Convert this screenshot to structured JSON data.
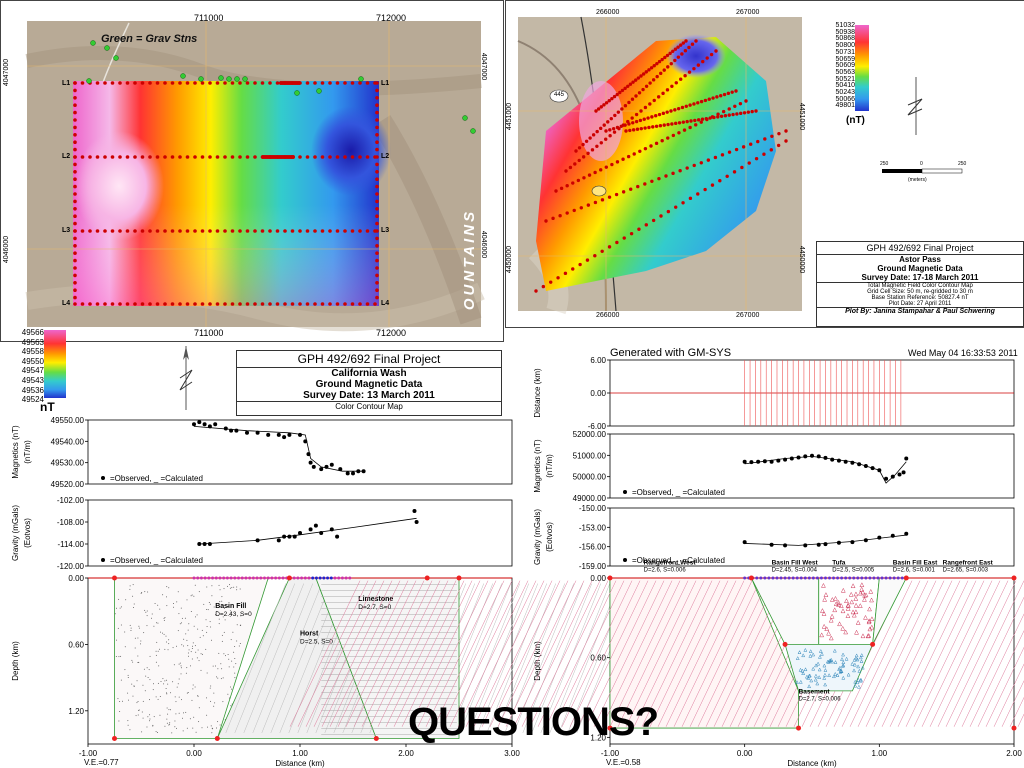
{
  "colors": {
    "plot_line": "#cc0000",
    "grid": "#cccccc",
    "green_station": "#33cc33",
    "red_station": "#cc0000"
  },
  "left_map": {
    "top_ticks": [
      "711000",
      "712000"
    ],
    "bottom_ticks": [
      "711000",
      "712000"
    ],
    "left_ticks": [
      "4047000",
      "4046000"
    ],
    "right_ticks": [
      "4047000",
      "4046000"
    ],
    "annotation": "Green = Grav Stns",
    "line_labels": [
      "L1",
      "L2",
      "L3",
      "L4"
    ],
    "mountains_text": "OUNTAINS",
    "colorbar_title": "nT",
    "colorbar_values": [
      "49566",
      "49563",
      "49558",
      "49550",
      "49547",
      "49543",
      "49536",
      "49524"
    ]
  },
  "left_title_block": {
    "course": "GPH 492/692 Final Project",
    "location": "California Wash",
    "data_type": "Ground Magnetic Data",
    "survey_date": "Survey Date: 13 March 2011",
    "map_type": "Color Contour Map"
  },
  "right_map": {
    "top_ticks": [
      "266000",
      "267000"
    ],
    "bottom_ticks": [
      "266000",
      "267000"
    ],
    "left_ticks": [
      "4451000",
      "4450000"
    ],
    "right_ticks": [
      "4451000",
      "4450000"
    ],
    "colorbar_title": "(nT)",
    "colorbar_values": [
      "51032",
      "50938",
      "50868",
      "50800",
      "50731",
      "50659",
      "50609",
      "50563",
      "50521",
      "50410",
      "50243",
      "50066",
      "49801"
    ],
    "road_label": "445",
    "scale_label": "(meters)",
    "scale_ticks": [
      "250",
      "0",
      "250"
    ]
  },
  "right_title_block": {
    "course": "GPH 492/692 Final Project",
    "location": "Astor Pass",
    "data_type": "Ground Magnetic Data",
    "survey_date": "Survey Date: 17-18 March 2011",
    "line1": "Total Magnetic Field Color Contour Map",
    "line2": "Grid Cell Size: 50 m, re-gridded to 30 m",
    "line3": "Base Station Reference: 50827.4 nT",
    "line4": "Plot Date: 27 April 2011",
    "credit": "Plot By: Janina Stampahar & Paul Schwering"
  },
  "gmsys": {
    "generated": "Generated with GM-SYS",
    "timestamp": "Wed May 04 16:33:53 2011"
  },
  "questions": "QUESTIONS?",
  "chart_data": [
    {
      "type": "scatter",
      "panel": "left-magnetics",
      "ylabel": "Magnetics (nT)",
      "ylabel2": "(nT/m)",
      "yticks": [
        "49550.00",
        "49540.00",
        "49530.00",
        "49520.00"
      ],
      "ylim": [
        49520,
        49550
      ],
      "xlim": [
        -1.0,
        3.0
      ],
      "legend": "=Observed,   _  =Calculated",
      "observed": [
        [
          0.0,
          49548
        ],
        [
          0.05,
          49549
        ],
        [
          0.1,
          49548
        ],
        [
          0.15,
          49547
        ],
        [
          0.2,
          49548
        ],
        [
          0.3,
          49546
        ],
        [
          0.35,
          49545
        ],
        [
          0.4,
          49545
        ],
        [
          0.5,
          49544
        ],
        [
          0.6,
          49544
        ],
        [
          0.7,
          49543
        ],
        [
          0.8,
          49543
        ],
        [
          0.85,
          49542
        ],
        [
          0.9,
          49543
        ],
        [
          1.0,
          49543
        ],
        [
          1.05,
          49540
        ],
        [
          1.08,
          49534
        ],
        [
          1.1,
          49530
        ],
        [
          1.13,
          49528
        ],
        [
          1.2,
          49527
        ],
        [
          1.25,
          49528
        ],
        [
          1.3,
          49529
        ],
        [
          1.38,
          49527
        ],
        [
          1.45,
          49525
        ],
        [
          1.5,
          49525
        ],
        [
          1.55,
          49526
        ],
        [
          1.6,
          49526
        ]
      ],
      "calculated": [
        [
          0.0,
          49547
        ],
        [
          0.5,
          49545
        ],
        [
          0.9,
          49544
        ],
        [
          1.05,
          49543
        ],
        [
          1.1,
          49532
        ],
        [
          1.2,
          49528
        ],
        [
          1.4,
          49526
        ],
        [
          1.6,
          49526
        ]
      ]
    },
    {
      "type": "scatter",
      "panel": "left-gravity",
      "ylabel": "Gravity (mGals)",
      "ylabel2": "(Eotvos)",
      "yticks": [
        "-102.00",
        "-108.00",
        "-114.00",
        "-120.00"
      ],
      "ylim": [
        -120,
        -102
      ],
      "xlim": [
        -1.0,
        3.0
      ],
      "legend": "=Observed,   _  =Calculated",
      "observed": [
        [
          0.05,
          -114
        ],
        [
          0.1,
          -114
        ],
        [
          0.15,
          -114
        ],
        [
          0.6,
          -113
        ],
        [
          0.8,
          -113
        ],
        [
          0.85,
          -112
        ],
        [
          0.9,
          -112
        ],
        [
          0.95,
          -112
        ],
        [
          1.0,
          -111
        ],
        [
          1.1,
          -110
        ],
        [
          1.15,
          -109
        ],
        [
          1.2,
          -111
        ],
        [
          1.3,
          -110
        ],
        [
          1.35,
          -112
        ],
        [
          2.08,
          -105
        ],
        [
          2.1,
          -108
        ]
      ],
      "calculated": [
        [
          0.05,
          -114
        ],
        [
          0.6,
          -113
        ],
        [
          1.0,
          -111.5
        ],
        [
          1.5,
          -109.5
        ],
        [
          2.1,
          -107
        ]
      ]
    },
    {
      "type": "area",
      "panel": "left-depth",
      "ylabel": "Depth (km)",
      "xlabel": "Distance (km)",
      "xticks": [
        "-1.00",
        "0.00",
        "1.00",
        "2.00",
        "3.00"
      ],
      "yticks": [
        "0.00",
        "0.60",
        "1.20"
      ],
      "xlim": [
        -1.0,
        3.0
      ],
      "ylim": [
        0,
        1.5
      ],
      "ve": "V.E.=0.77",
      "bodies": [
        {
          "name": "Basin Fill",
          "params": "D=2.43, S=0"
        },
        {
          "name": "Horst",
          "params": "D=2.5, S=0"
        },
        {
          "name": "Limestone",
          "params": "D=2.7, S=0"
        }
      ]
    },
    {
      "type": "line",
      "panel": "right-distance",
      "ylabel": "Distance (km)",
      "yticks": [
        "-6.00",
        "0.00",
        "6.00"
      ],
      "ylim": [
        -6,
        6
      ],
      "xlim": [
        -1.0,
        2.0
      ]
    },
    {
      "type": "scatter",
      "panel": "right-magnetics",
      "ylabel": "Magnetics (nT)",
      "ylabel2": "(nT/m)",
      "yticks": [
        "52000.00",
        "51000.00",
        "50000.00",
        "49000.00"
      ],
      "ylim": [
        49000,
        52000
      ],
      "xlim": [
        -1.0,
        2.0
      ],
      "legend": "=Observed,   _  =Calculated",
      "observed": [
        [
          0.0,
          50700
        ],
        [
          0.05,
          50680
        ],
        [
          0.1,
          50700
        ],
        [
          0.15,
          50720
        ],
        [
          0.2,
          50700
        ],
        [
          0.25,
          50750
        ],
        [
          0.3,
          50800
        ],
        [
          0.35,
          50850
        ],
        [
          0.4,
          50900
        ],
        [
          0.45,
          50950
        ],
        [
          0.5,
          50980
        ],
        [
          0.55,
          50950
        ],
        [
          0.6,
          50880
        ],
        [
          0.65,
          50800
        ],
        [
          0.7,
          50750
        ],
        [
          0.75,
          50700
        ],
        [
          0.8,
          50650
        ],
        [
          0.85,
          50580
        ],
        [
          0.9,
          50500
        ],
        [
          0.95,
          50400
        ],
        [
          1.0,
          50300
        ],
        [
          1.05,
          49900
        ],
        [
          1.1,
          50000
        ],
        [
          1.15,
          50100
        ],
        [
          1.18,
          50200
        ],
        [
          1.2,
          50850
        ]
      ],
      "calculated": [
        [
          0.0,
          50600
        ],
        [
          0.3,
          50850
        ],
        [
          0.5,
          50950
        ],
        [
          0.8,
          50700
        ],
        [
          1.0,
          50300
        ],
        [
          1.05,
          49700
        ],
        [
          1.12,
          50100
        ],
        [
          1.2,
          50700
        ]
      ]
    },
    {
      "type": "scatter",
      "panel": "right-gravity",
      "ylabel": "Gravity (mGals)",
      "ylabel2": "(Eotvos)",
      "yticks": [
        "-150.00",
        "-153.00",
        "-156.00",
        "-159.00"
      ],
      "ylim": [
        -159,
        -150
      ],
      "xlim": [
        -1.0,
        2.0
      ],
      "legend": "=Observed,   _  =Calculated",
      "observed": [
        [
          0.0,
          -155.3
        ],
        [
          0.2,
          -155.7
        ],
        [
          0.3,
          -155.8
        ],
        [
          0.45,
          -155.8
        ],
        [
          0.55,
          -155.7
        ],
        [
          0.6,
          -155.6
        ],
        [
          0.7,
          -155.4
        ],
        [
          0.8,
          -155.3
        ],
        [
          0.9,
          -155.0
        ],
        [
          1.0,
          -154.6
        ],
        [
          1.1,
          -154.3
        ],
        [
          1.2,
          -154.0
        ]
      ],
      "calculated": [
        [
          0.0,
          -155.5
        ],
        [
          0.4,
          -155.8
        ],
        [
          0.8,
          -155.2
        ],
        [
          1.2,
          -154.2
        ]
      ]
    },
    {
      "type": "area",
      "panel": "right-depth",
      "ylabel": "Depth (km)",
      "xlabel": "Distance (km)",
      "xticks": [
        "-1.00",
        "0.00",
        "1.00",
        "2.00"
      ],
      "yticks": [
        "0.00",
        "0.60",
        "1.20"
      ],
      "xlim": [
        -1.0,
        2.0
      ],
      "ylim": [
        0,
        1.25
      ],
      "ve": "V.E.=0.58",
      "bodies": [
        {
          "name": "Rangefront West",
          "params": "D=2.6, S=0.006"
        },
        {
          "name": "Basin Fill West",
          "params": "D=2.45, S=0.004"
        },
        {
          "name": "Tufa",
          "params": "D=2.5, S=0.005"
        },
        {
          "name": "Basin Fill East",
          "params": "D=2.6, S=0.001"
        },
        {
          "name": "Rangefront East",
          "params": "D=2.65, S=0.003"
        },
        {
          "name": "Basement",
          "params": "D=2.7, S=0.006"
        }
      ]
    }
  ]
}
